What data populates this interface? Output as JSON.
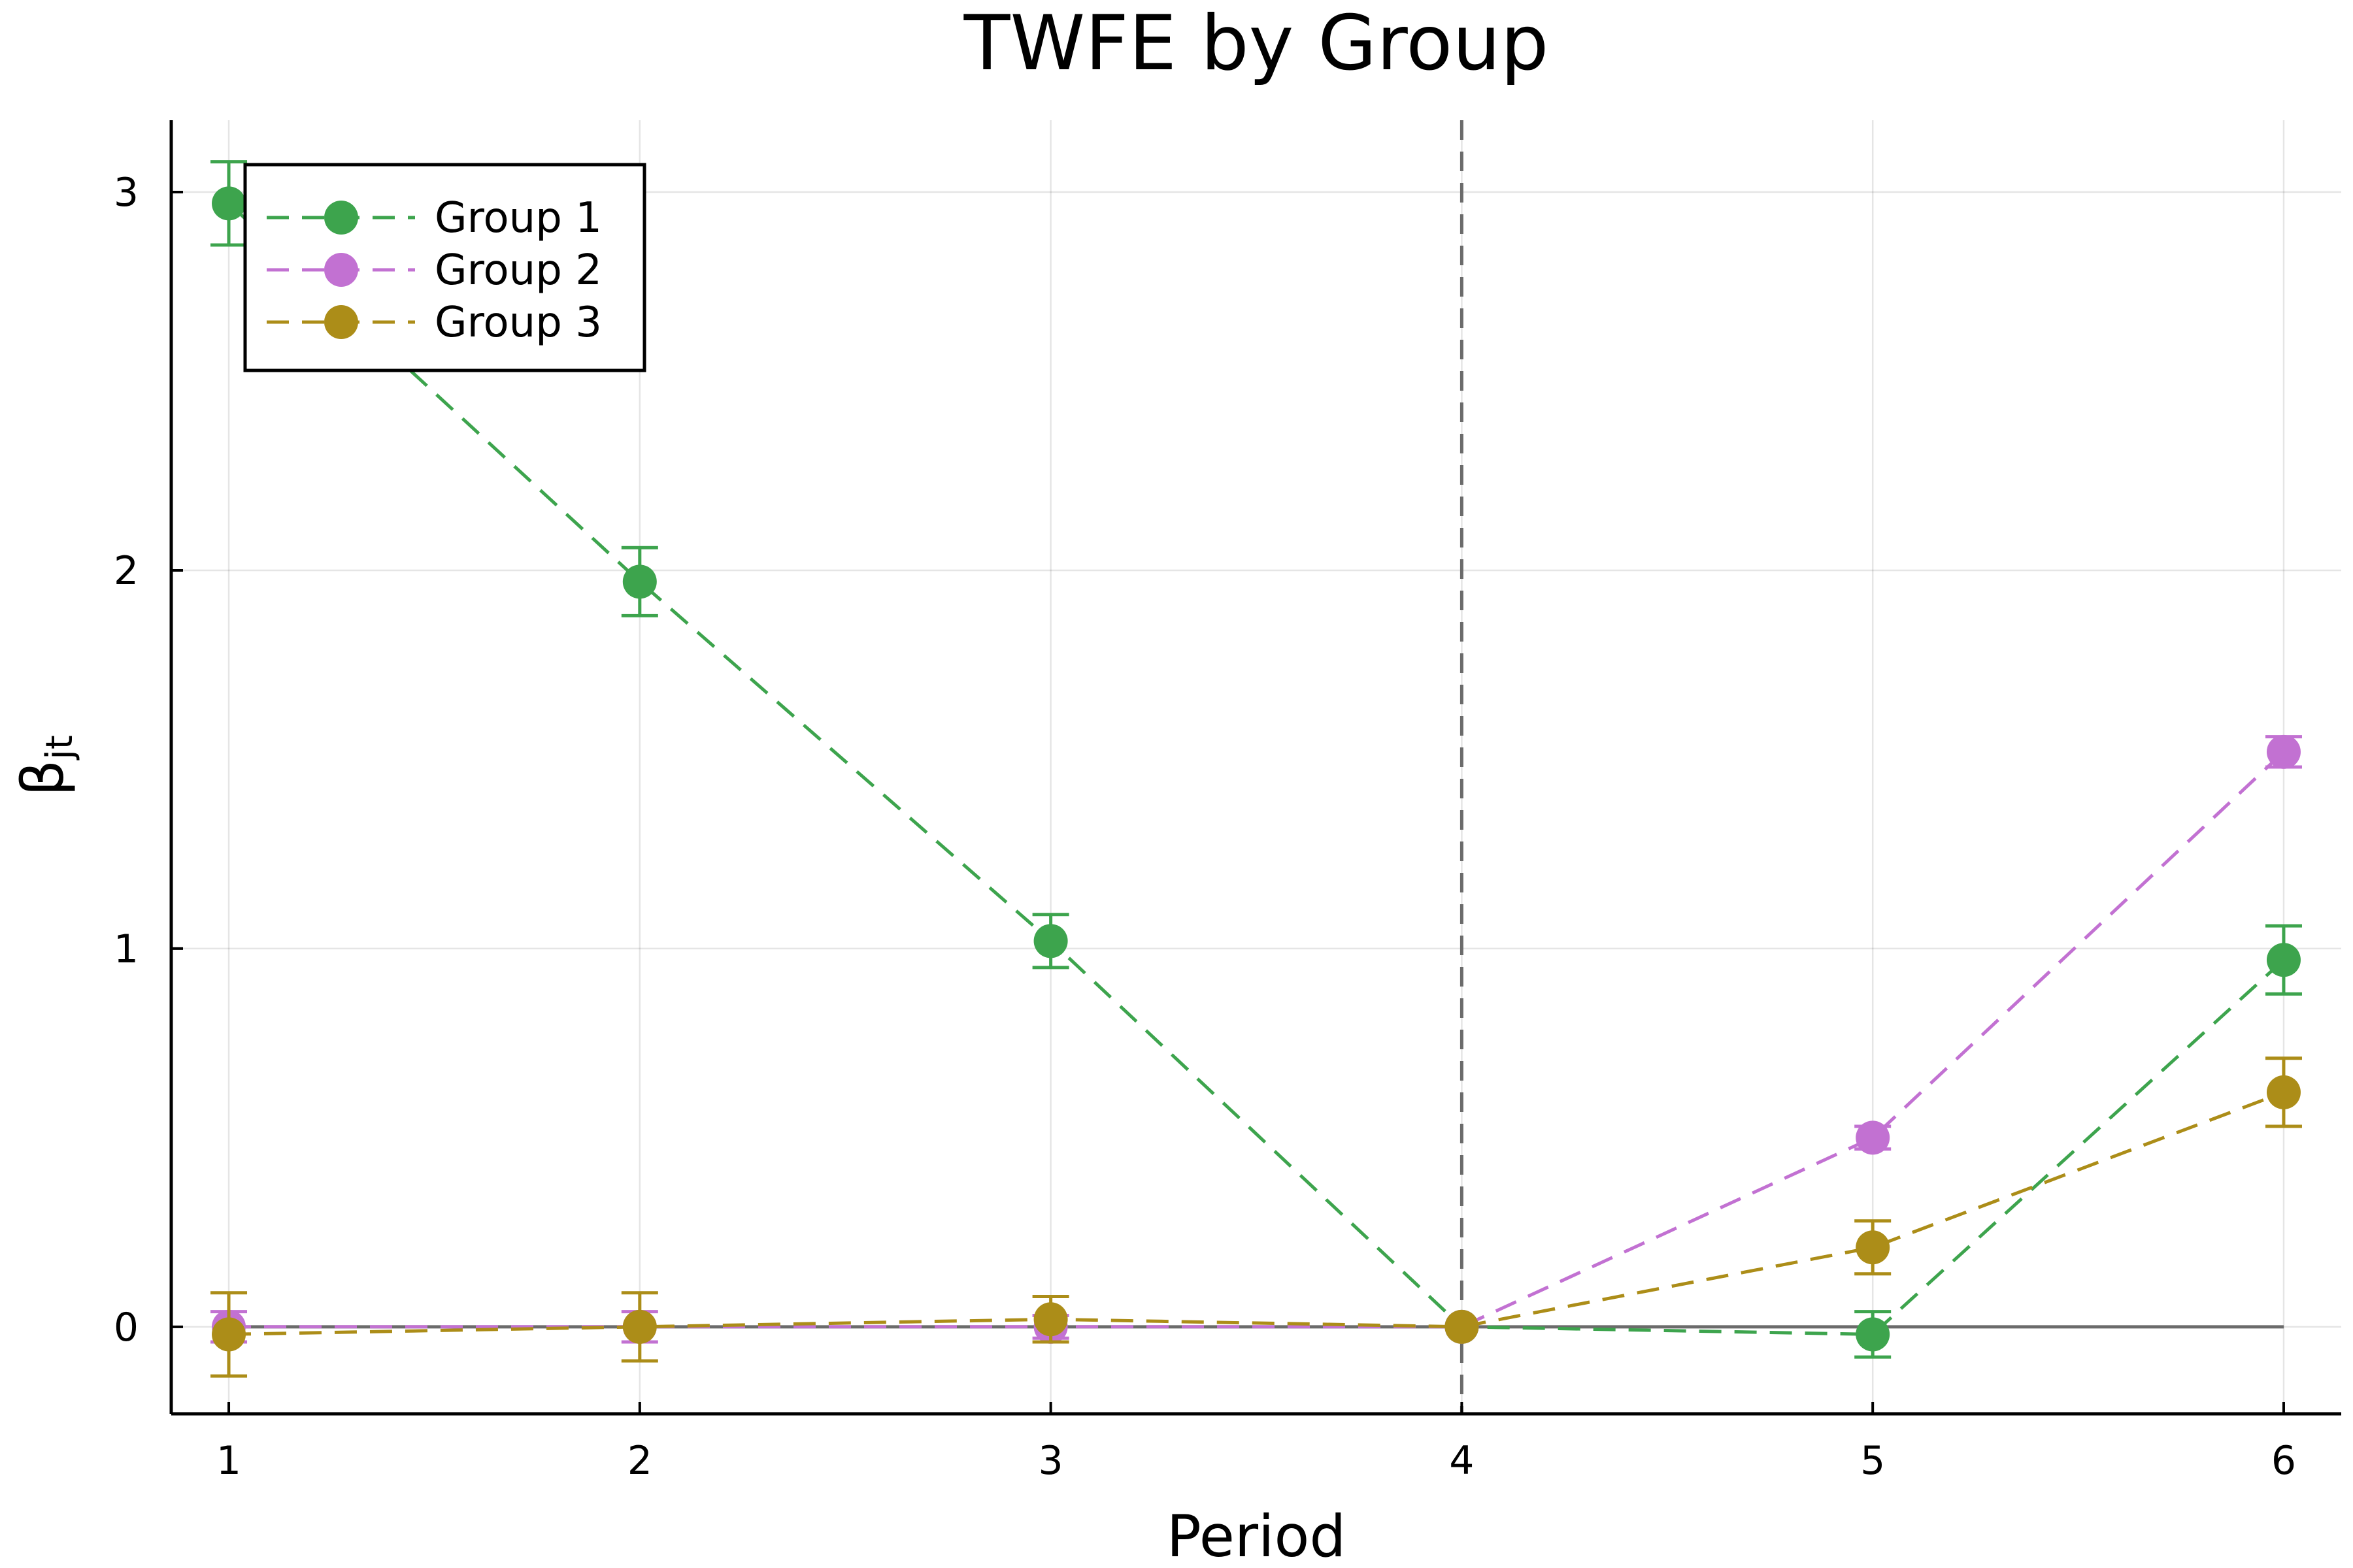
{
  "chart_data": {
    "type": "line",
    "title": "TWFE by Group",
    "xlabel": "Period",
    "ylabel_main": "β",
    "ylabel_sub": "jt",
    "x": [
      1,
      2,
      3,
      4,
      5,
      6
    ],
    "xticks": [
      1,
      2,
      3,
      4,
      5,
      6
    ],
    "yticks": [
      0,
      1,
      2,
      3
    ],
    "xlim": [
      0.86,
      6.14
    ],
    "ylim": [
      -0.23,
      3.19
    ],
    "grid": true,
    "legend_position": "top-left",
    "reference_lines": {
      "vertical_x": 4,
      "horizontal_y": 0
    },
    "series": [
      {
        "name": "Group 1",
        "color": "#3da44d",
        "values": [
          2.97,
          1.97,
          1.02,
          0.0,
          -0.02,
          0.97
        ],
        "err": [
          0.11,
          0.09,
          0.07,
          0.0,
          0.06,
          0.09
        ]
      },
      {
        "name": "Group 2",
        "color": "#c271d2",
        "values": [
          0.0,
          0.0,
          0.0,
          0.0,
          0.5,
          1.52
        ],
        "err": [
          0.04,
          0.04,
          0.03,
          0.0,
          0.03,
          0.04
        ]
      },
      {
        "name": "Group 3",
        "color": "#ac8d18",
        "values": [
          -0.02,
          0.0,
          0.02,
          0.0,
          0.21,
          0.62
        ],
        "err": [
          0.11,
          0.09,
          0.06,
          0.0,
          0.07,
          0.09
        ]
      }
    ]
  }
}
